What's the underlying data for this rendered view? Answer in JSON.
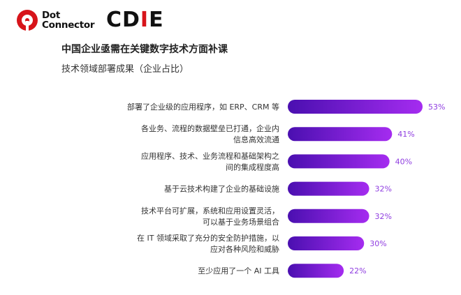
{
  "logos": {
    "dot_connector_line1": "Dot",
    "dot_connector_line2": "Connector",
    "cdie_text": "CD",
    "cdie_mark": "I",
    "cdie_tail": "E"
  },
  "colors": {
    "bar_start": "#4a0fb0",
    "bar_end": "#a52cf0",
    "value_label": "#8f3de0",
    "logo_red": "#d7141a"
  },
  "chart_data": {
    "type": "bar",
    "orientation": "horizontal",
    "title": "中国企业亟需在关键数字技术方面补课",
    "subtitle": "技术领域部署成果（企业占比）",
    "unit": "%",
    "categories": [
      [
        "部署了企业级的应用程序，如 ERP、CRM 等"
      ],
      [
        "各业务、流程的数据壁垒已打通，企业内",
        "信息高效流通"
      ],
      [
        "应用程序、技术、业务流程和基础架构之",
        "间的集成程度高"
      ],
      [
        "基于云技术构建了企业的基础设施"
      ],
      [
        "技术平台可扩展，系统和应用设置灵活，",
        "可以基于业务场景组合"
      ],
      [
        "在 IT 领域采取了充分的安全防护措施，以",
        "应对各种风险和威胁"
      ],
      [
        "至少应用了一个 AI 工具"
      ]
    ],
    "values": [
      53,
      41,
      40,
      32,
      32,
      30,
      22
    ],
    "value_labels": [
      "53%",
      "41%",
      "40%",
      "32%",
      "32%",
      "30%",
      "22%"
    ],
    "xlim": [
      0,
      53
    ],
    "grid": false,
    "legend": "none"
  }
}
